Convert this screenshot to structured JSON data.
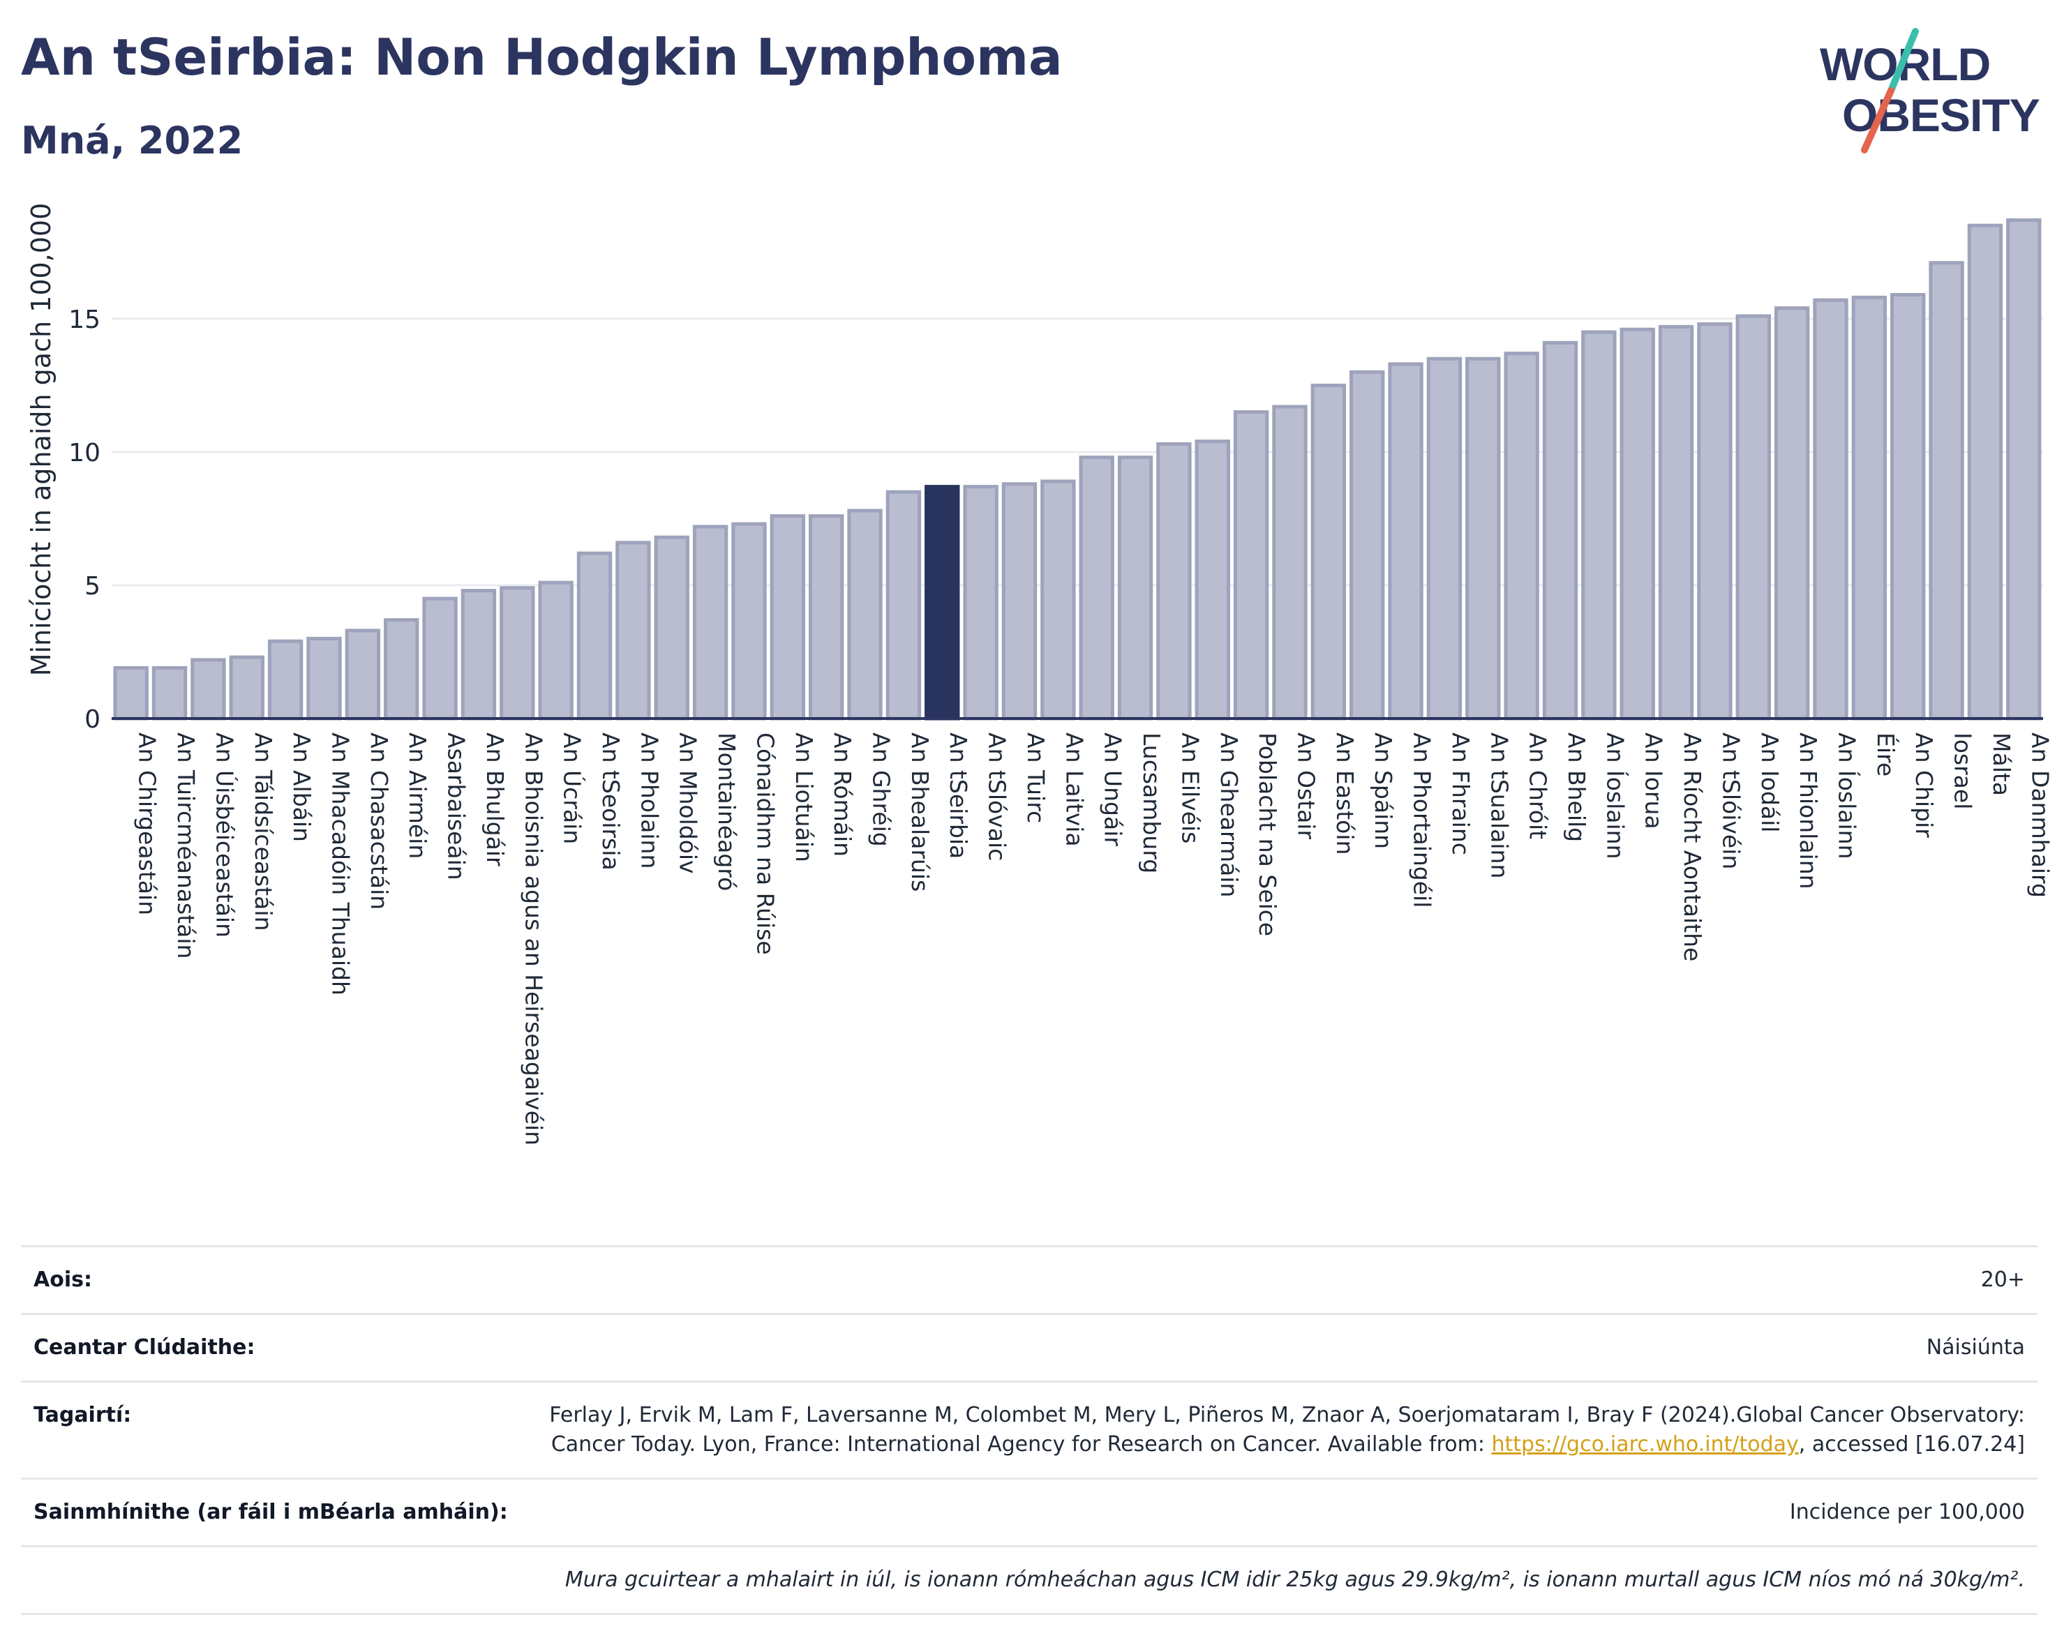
{
  "header": {
    "title": "An tSeirbia: Non Hodgkin Lymphoma",
    "subtitle": "Mná, 2022"
  },
  "logo": {
    "line1": "WORLD",
    "line2": "OBESITY",
    "colors": {
      "text": "#2c3560",
      "slash_teal": "#3bbfad",
      "slash_red": "#e3654d"
    }
  },
  "colors": {
    "bar_default": "#b9bdcf",
    "bar_default_stroke": "#9ea3bb",
    "bar_highlight": "#28335e",
    "axis": "#2c3560",
    "grid": "#e9ebf0"
  },
  "chart_data": {
    "type": "bar",
    "ylabel": "Minicíocht in aghaidh gach 100,000",
    "ylim": [
      0,
      19.5
    ],
    "yticks": [
      0,
      5,
      10,
      15
    ],
    "grid": true,
    "highlight": "An tSeirbia",
    "categories": [
      "An Chirgeastáin",
      "An Tuircméanastáin",
      "An Úisbéiceastáin",
      "An Táidsíceastáin",
      "An Albáin",
      "An Mhacadóin Thuaidh",
      "An Chasacstáin",
      "An Airméin",
      "Asarbaiseáin",
      "An Bhulgáir",
      "An Bhoisnia agus an Heirseagaivéin",
      "An Úcráin",
      "An tSeoirsia",
      "An Pholainn",
      "An Mholdóiv",
      "Montainéagró",
      "Cónaidhm na Rúise",
      "An Liotuáin",
      "An Rómáin",
      "An Ghréig",
      "An Bhealarúis",
      "An tSeirbia",
      "An tSlóvaic",
      "An Tuirc",
      "An Laitvia",
      "An Ungáir",
      "Lucsamburg",
      "An Eilvéis",
      "An Ghearmáin",
      "Poblacht na Seice",
      "An Ostair",
      "An Eastóin",
      "An Spáinn",
      "An Phortaingéil",
      "An Fhrainc",
      "An tSualainn",
      "An Chróit",
      "An Bheilg",
      "An Íoslainn",
      "An Iorua",
      "An Ríocht Aontaithe",
      "An tSlóivéin",
      "An Iodáil",
      "An Fhionlainn",
      "An Íoslainn",
      "Éire",
      "An Chipir",
      "Iosrael",
      "Málta",
      "An Danmhairg"
    ],
    "values": [
      1.9,
      1.9,
      2.2,
      2.3,
      2.9,
      3.0,
      3.3,
      3.7,
      4.5,
      4.8,
      4.9,
      5.1,
      6.2,
      6.6,
      6.8,
      7.2,
      7.3,
      7.6,
      7.6,
      7.8,
      8.5,
      8.7,
      8.7,
      8.8,
      8.9,
      9.8,
      9.8,
      10.3,
      10.4,
      11.5,
      11.7,
      12.5,
      13.0,
      13.3,
      13.5,
      13.5,
      13.7,
      14.1,
      14.5,
      14.6,
      14.7,
      14.8,
      15.1,
      15.4,
      15.7,
      15.8,
      15.9,
      17.1,
      18.5,
      18.7
    ]
  },
  "meta": {
    "age_label": "Aois:",
    "age_value": "20+",
    "coverage_label": "Ceantar Clúdaithe:",
    "coverage_value": "Náisiúnta",
    "references_label": "Tagairtí:",
    "references_text": "Ferlay J, Ervik M, Lam F, Laversanne M, Colombet M, Mery L, Piñeros M, Znaor A, Soerjomataram I, Bray F (2024).Global Cancer Observatory: Cancer Today. Lyon, France: International Agency for Research on Cancer. Available from: ",
    "references_link": "https://gco.iarc.who.int/today",
    "references_suffix": ", accessed [16.07.24]",
    "definitions_label": "Sainmhínithe (ar fáil i mBéarla amháin):",
    "definitions_value": "Incidence per 100,000",
    "note": "Mura gcuirtear a mhalairt in iúl, is ionann rómheáchan agus ICM idir 25kg agus 29.9kg/m², is ionann murtall agus ICM níos mó ná 30kg/m²."
  }
}
